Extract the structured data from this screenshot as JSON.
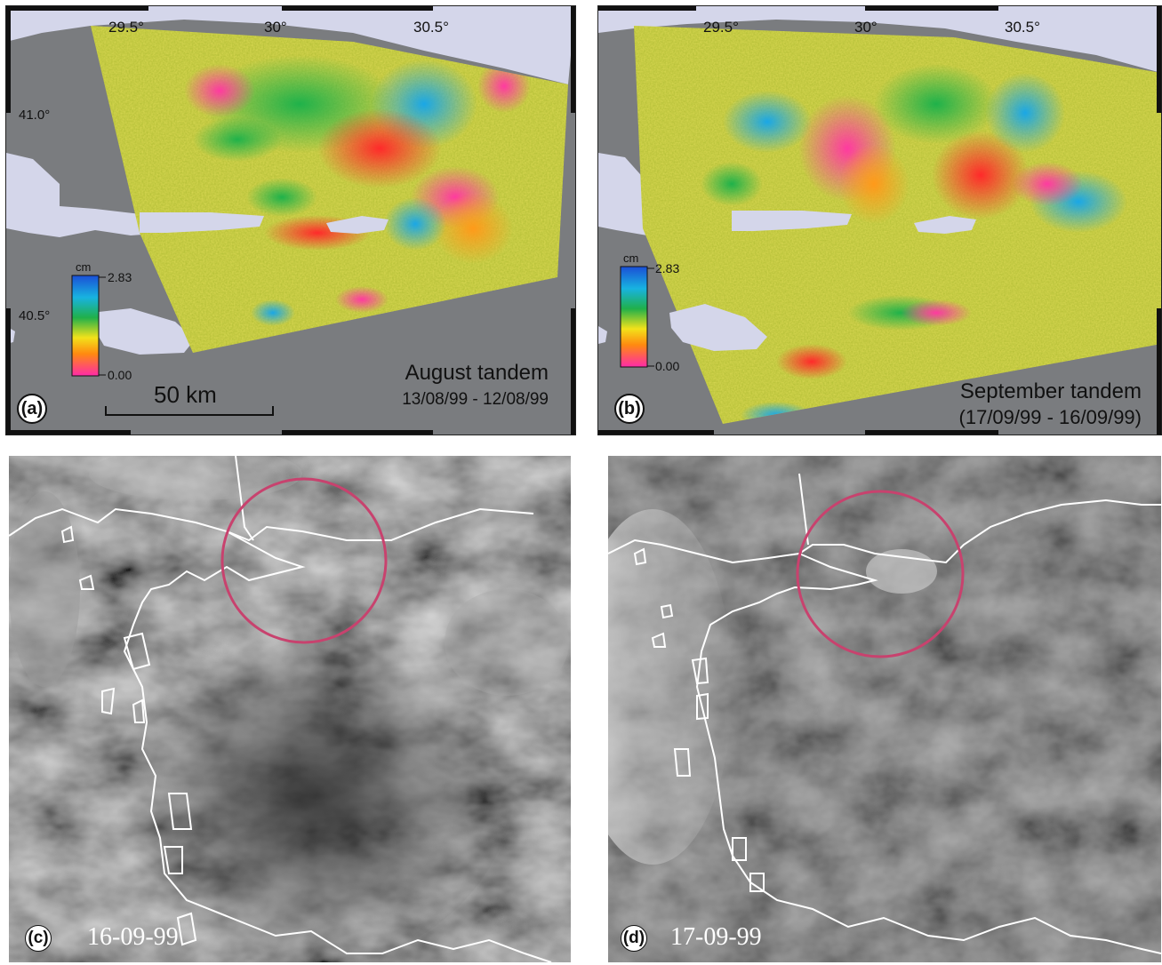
{
  "panels": {
    "a": {
      "letter": "(a)",
      "lon_ticks": [
        "29.5°",
        "30°",
        "30.5°"
      ],
      "lat_ticks": [
        "41.0°",
        "40.5°"
      ],
      "colorbar": {
        "unit": "cm",
        "max": "2.83",
        "min": "0.00"
      },
      "title": "August tandem",
      "dates": "13/08/99 - 12/08/99",
      "scale_bar": "50 km"
    },
    "b": {
      "letter": "(b)",
      "lon_ticks": [
        "29.5°",
        "30°",
        "30.5°"
      ],
      "colorbar": {
        "unit": "cm",
        "max": "2.83",
        "min": "0.00"
      },
      "title": "September tandem",
      "dates": "(17/09/99 - 16/09/99)"
    },
    "c": {
      "letter": "(c)",
      "date": "16-09-99"
    },
    "d": {
      "letter": "(d)",
      "date": "17-09-99"
    }
  },
  "colors": {
    "sea": "#d4d6ea",
    "land_mask": "#7a7c7f",
    "circle": "#c8426e",
    "coast_line": "#ffffff"
  }
}
